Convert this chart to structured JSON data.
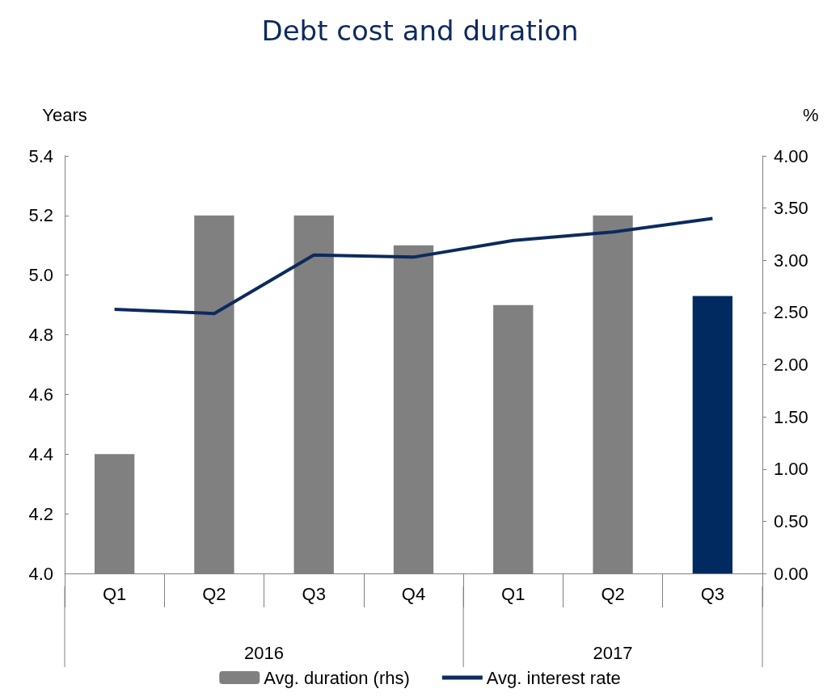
{
  "chart_data": {
    "type": "bar",
    "title": "Debt cost and duration",
    "ylabel": "Years",
    "y2label": "%",
    "categories": [
      "Q1",
      "Q2",
      "Q3",
      "Q4",
      "Q1",
      "Q2",
      "Q3"
    ],
    "series": [
      {
        "name": "Avg. duration (rhs)",
        "color": "#808080",
        "colors": [
          "#808080",
          "#808080",
          "#808080",
          "#808080",
          "#808080",
          "#808080",
          "#002a60"
        ],
        "values": [
          4.4,
          5.2,
          5.2,
          5.1,
          4.9,
          5.2,
          4.93
        ]
      },
      {
        "type": "line",
        "name": "Avg. interest rate",
        "color": "#0d2a5e",
        "axis": "y2",
        "values": [
          2.53,
          2.49,
          3.05,
          3.03,
          3.19,
          3.27,
          3.4
        ]
      }
    ],
    "ylim": [
      4.0,
      5.4
    ],
    "yticks": [
      {
        "value": 4.0,
        "label": "4.0"
      },
      {
        "value": 4.2,
        "label": "4.2"
      },
      {
        "value": 4.4,
        "label": "4.4"
      },
      {
        "value": 4.6,
        "label": "4.6"
      },
      {
        "value": 4.8,
        "label": "4.8"
      },
      {
        "value": 5.0,
        "label": "5.0"
      },
      {
        "value": 5.2,
        "label": "5.2"
      },
      {
        "value": 5.4,
        "label": "5.4"
      }
    ],
    "y2lim": [
      0,
      4
    ],
    "y2ticks": [
      {
        "value": 0,
        "label": "0.00"
      },
      {
        "value": 0.5,
        "label": "0.50"
      },
      {
        "value": 1,
        "label": "1.00"
      },
      {
        "value": 1.5,
        "label": "1.50"
      },
      {
        "value": 2,
        "label": "2.00"
      },
      {
        "value": 2.5,
        "label": "2.50"
      },
      {
        "value": 3,
        "label": "3.00"
      },
      {
        "value": 3.5,
        "label": "3.50"
      },
      {
        "value": 4,
        "label": "4.00"
      }
    ],
    "annotations": [
      "2016",
      "2017"
    ],
    "grid": false,
    "legend": "bottom",
    "marker": "none",
    "line_style": "solid"
  }
}
